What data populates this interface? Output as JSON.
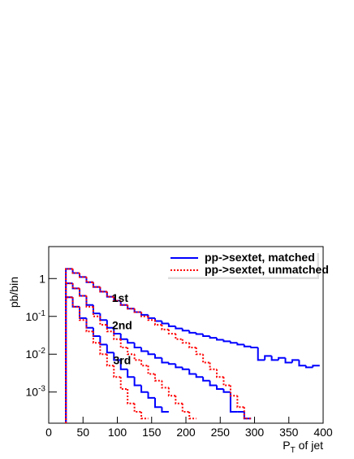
{
  "chart_data": {
    "type": "histogram",
    "y_label": "pb/bin",
    "x_label": {
      "main": "P",
      "sub": "T",
      "rest": " of jet"
    },
    "bins": [
      25,
      35,
      45,
      55,
      65,
      75,
      85,
      95,
      105,
      115,
      125,
      135,
      145,
      155,
      165,
      175,
      185,
      195,
      205,
      215,
      225,
      235,
      245,
      255,
      265,
      275,
      285,
      295,
      305,
      315,
      325,
      335,
      345,
      355,
      365,
      375,
      385,
      395
    ],
    "series": [
      {
        "name": "pp->sextet, matched",
        "color": "#0000ff",
        "style": "solid",
        "values": [
          [
            1.8,
            1.4,
            1.1,
            0.8,
            0.6,
            0.45,
            0.33,
            0.26,
            0.2,
            0.16,
            0.13,
            0.11,
            0.09,
            0.075,
            0.065,
            0.055,
            0.048,
            0.042,
            0.037,
            0.034,
            0.03,
            0.027,
            0.024,
            0.022,
            0.02,
            0.018,
            0.016,
            0.015,
            0.007,
            0.009,
            0.007,
            0.008,
            0.006,
            0.007,
            0.005,
            0.0045,
            0.005
          ],
          [
            0.75,
            0.55,
            0.35,
            0.2,
            0.12,
            0.08,
            0.05,
            0.035,
            0.025,
            0.02,
            0.015,
            0.012,
            0.01,
            0.008,
            0.006,
            0.0055,
            0.0045,
            0.004,
            0.003,
            0.0025,
            0.002,
            0.0015,
            0.0012,
            0.001,
            0.0003,
            0.0003,
            0.0002,
            null,
            null,
            null,
            null,
            null,
            null,
            null,
            null,
            null,
            null
          ],
          [
            0.32,
            0.18,
            0.09,
            0.05,
            0.03,
            0.018,
            0.011,
            0.007,
            0.004,
            0.0025,
            0.0015,
            0.001,
            0.0007,
            0.0004,
            0.0003,
            null,
            null,
            null,
            null,
            null,
            null,
            null,
            null,
            null,
            null,
            null,
            null,
            null,
            null,
            null,
            null,
            null,
            null,
            null,
            null,
            null,
            null
          ]
        ]
      },
      {
        "name": "pp->sextet, unmatched",
        "color": "#ff0000",
        "style": "dotted",
        "values": [
          [
            1.8,
            1.4,
            1.1,
            0.8,
            0.6,
            0.45,
            0.33,
            0.26,
            0.2,
            0.16,
            0.13,
            0.1,
            0.08,
            0.06,
            0.045,
            0.035,
            0.025,
            0.02,
            0.015,
            0.01,
            0.006,
            0.004,
            0.0025,
            0.0015,
            0.0008,
            0.0004,
            0.0002,
            null,
            null,
            null,
            null,
            null,
            null,
            null,
            null,
            null,
            null
          ],
          [
            0.75,
            0.55,
            0.35,
            0.18,
            0.1,
            0.06,
            0.04,
            0.025,
            0.015,
            0.01,
            0.007,
            0.005,
            0.003,
            0.002,
            0.0013,
            0.0008,
            0.0005,
            0.0003,
            0.0002,
            null,
            null,
            null,
            null,
            null,
            null,
            null,
            null,
            null,
            null,
            null,
            null,
            null,
            null,
            null,
            null,
            null,
            null
          ],
          [
            0.32,
            0.18,
            0.08,
            0.04,
            0.02,
            0.01,
            0.005,
            0.0025,
            0.0012,
            0.0005,
            0.0003,
            0.0002,
            null,
            null,
            null,
            null,
            null,
            null,
            null,
            null,
            null,
            null,
            null,
            null,
            null,
            null,
            null,
            null,
            null,
            null,
            null,
            null,
            null,
            null,
            null,
            null,
            null
          ]
        ]
      }
    ],
    "annotations": [
      {
        "text": "1st",
        "x": 104,
        "y": 0.24
      },
      {
        "text": "2nd",
        "x": 107,
        "y": 0.046
      },
      {
        "text": "3rd",
        "x": 107,
        "y": 0.0055
      }
    ],
    "xlim": [
      0,
      400
    ],
    "xticks": [
      0,
      50,
      100,
      150,
      200,
      250,
      300,
      350,
      400
    ],
    "ylim": [
      0.00015,
      7
    ],
    "log_y": true,
    "yticks": [
      {
        "value": 0.001,
        "label": "10",
        "exponent": "-3"
      },
      {
        "value": 0.01,
        "label": "10",
        "exponent": "-2"
      },
      {
        "value": 0.1,
        "label": "10",
        "exponent": "-1"
      },
      1
    ],
    "legend": "top-right"
  }
}
